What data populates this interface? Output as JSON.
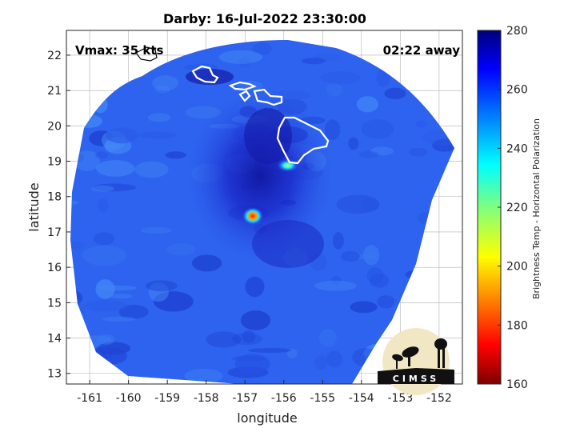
{
  "chart_data": {
    "type": "heatmap",
    "title": "Darby: 16-Jul-2022 23:30:00",
    "xlabel": "longitude",
    "ylabel": "latitude",
    "xlim": [
      -161.6,
      -151.4
    ],
    "ylim": [
      12.7,
      22.7
    ],
    "x_ticks": [
      "-161",
      "-160",
      "-159",
      "-158",
      "-157",
      "-156",
      "-155",
      "-154",
      "-153",
      "-152"
    ],
    "y_ticks": [
      "13",
      "14",
      "15",
      "16",
      "17",
      "18",
      "19",
      "20",
      "21",
      "22"
    ],
    "x_tick_values": [
      -161,
      -160,
      -159,
      -158,
      -157,
      -156,
      -155,
      -154,
      -153,
      -152
    ],
    "y_tick_values": [
      13,
      14,
      15,
      16,
      17,
      18,
      19,
      20,
      21,
      22
    ],
    "grid": true,
    "colorbar": {
      "label": "Brightness Temp - Horizontal Polarization",
      "range": [
        160,
        280
      ],
      "ticks": [
        "160",
        "180",
        "200",
        "220",
        "240",
        "260",
        "280"
      ],
      "tick_values": [
        160,
        180,
        200,
        220,
        240,
        260,
        280
      ],
      "colormap": "jet",
      "colors": [
        "#7f0000",
        "#ff0000",
        "#ffff00",
        "#00ffff",
        "#0000ff",
        "#00007f"
      ]
    },
    "annotations": {
      "vmax": "Vmax: 35 kts",
      "time_away": "02:22 away"
    },
    "features": {
      "storm_center": {
        "lon": -156.8,
        "lat": 17.45,
        "temp": 185
      },
      "secondary_cold_spot": {
        "lon": -155.9,
        "lat": 18.88,
        "temp": 215
      },
      "background_temp": 250,
      "core_temp": 265
    },
    "logo_text": "CIMSS"
  }
}
